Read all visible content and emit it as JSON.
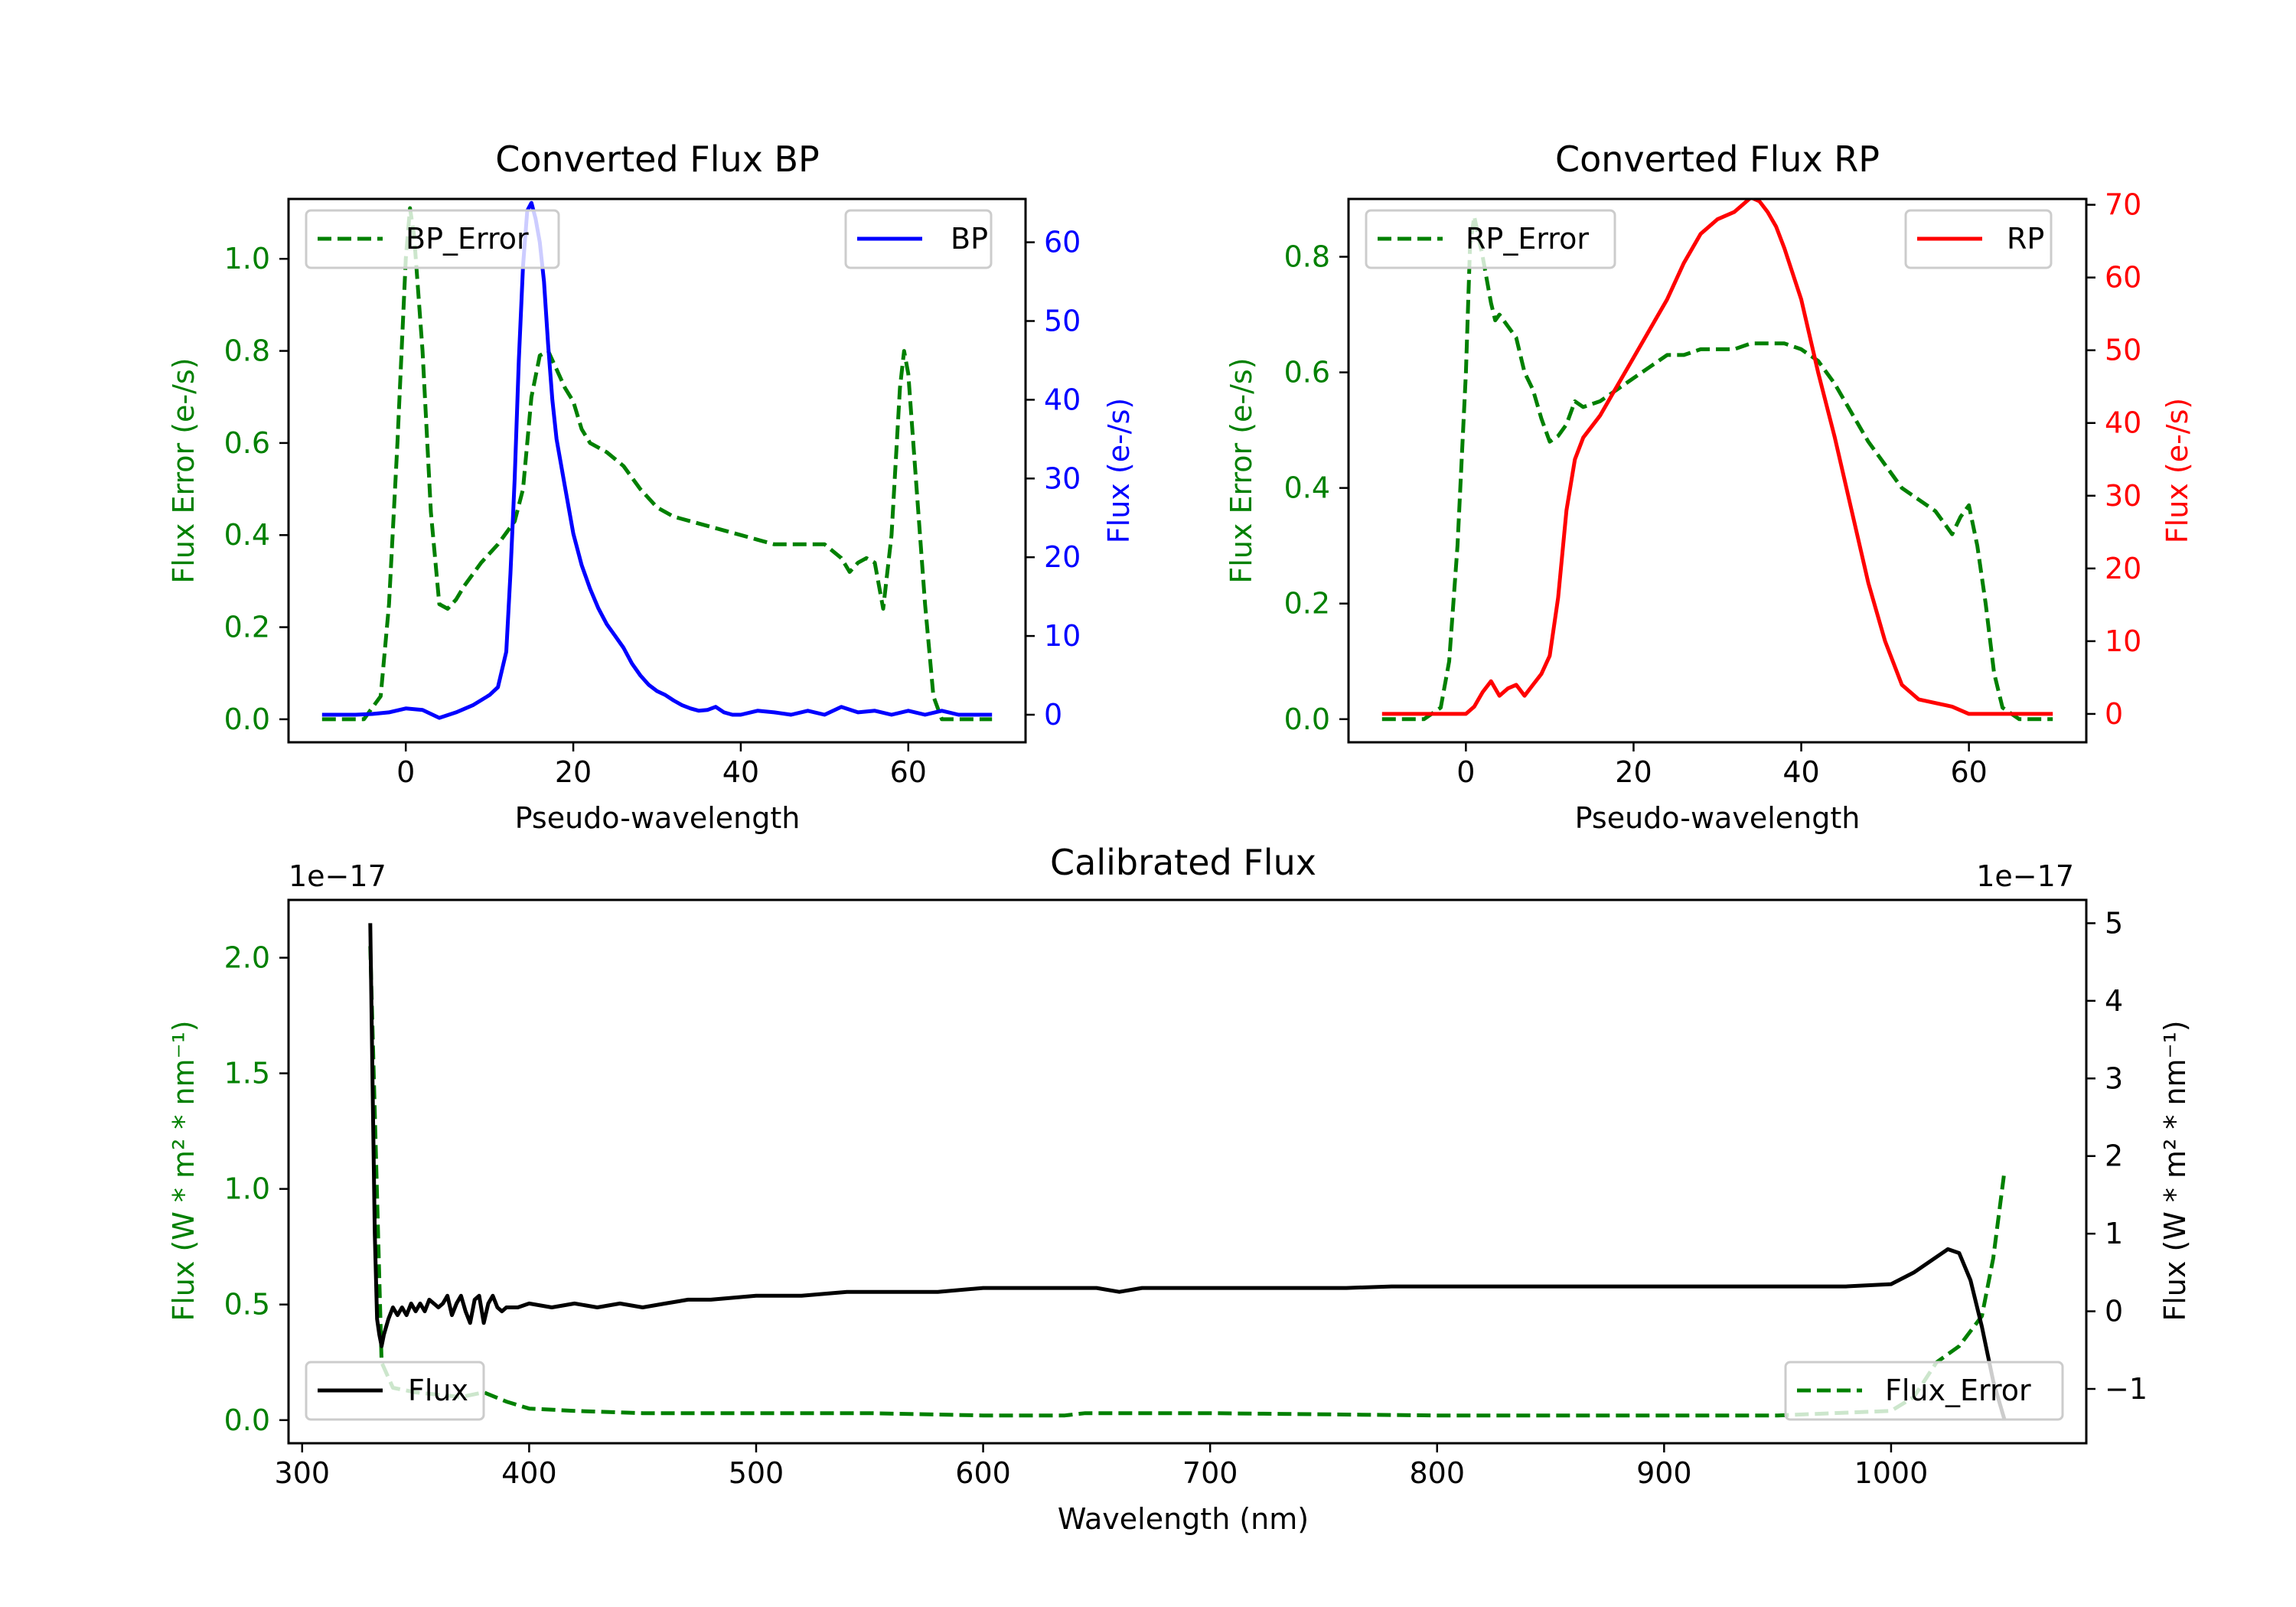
{
  "colors": {
    "green": "#008000",
    "blue": "#0000ff",
    "red": "#ff0000",
    "black": "#000000"
  },
  "chart_data": [
    {
      "type": "line",
      "title": "Converted Flux BP",
      "xlabel": "Pseudo-wavelength",
      "ylabel_left": "Flux Error (e-/s)",
      "ylabel_right": "Flux (e-/s)",
      "xlim": [
        -14,
        74
      ],
      "ylim_left": [
        -0.05,
        1.13
      ],
      "ylim_right": [
        -3.5,
        65.5
      ],
      "xticks": [
        0,
        20,
        40,
        60
      ],
      "yticks_left": [
        "0.0",
        "0.2",
        "0.4",
        "0.6",
        "0.8",
        "1.0"
      ],
      "yticks_right": [
        "0",
        "10",
        "20",
        "30",
        "40",
        "50",
        "60"
      ],
      "legend_left": "BP_Error",
      "legend_right": "BP",
      "series": [
        {
          "name": "BP_Error",
          "axis": "left",
          "style": "dashed",
          "color": "#008000",
          "x": [
            -10,
            -5,
            -3,
            -2,
            -1,
            0,
            0.5,
            1,
            2,
            3,
            4,
            5,
            6,
            7,
            9,
            11,
            13,
            14,
            15,
            16,
            17,
            18,
            19,
            20,
            21,
            22,
            24,
            26,
            28,
            30,
            32,
            34,
            36,
            38,
            40,
            42,
            44,
            46,
            48,
            50,
            52,
            53,
            54,
            55,
            56,
            57,
            58,
            59,
            59.5,
            60,
            61,
            62,
            63,
            64,
            66,
            70
          ],
          "y": [
            0,
            0,
            0.05,
            0.25,
            0.6,
            1.0,
            1.11,
            1.05,
            0.8,
            0.45,
            0.25,
            0.24,
            0.26,
            0.29,
            0.34,
            0.38,
            0.43,
            0.5,
            0.7,
            0.79,
            0.8,
            0.76,
            0.72,
            0.69,
            0.63,
            0.6,
            0.58,
            0.55,
            0.5,
            0.46,
            0.44,
            0.43,
            0.42,
            0.41,
            0.4,
            0.39,
            0.38,
            0.38,
            0.38,
            0.38,
            0.35,
            0.32,
            0.34,
            0.35,
            0.34,
            0.24,
            0.4,
            0.72,
            0.8,
            0.75,
            0.5,
            0.25,
            0.05,
            0,
            0,
            0
          ]
        },
        {
          "name": "BP",
          "axis": "right",
          "style": "solid",
          "color": "#0000ff",
          "x": [
            -10,
            -6,
            -4,
            -2,
            0,
            2,
            4,
            6,
            8,
            10,
            11,
            12,
            12.5,
            13,
            13.5,
            14,
            14.5,
            15,
            15.5,
            16,
            16.5,
            17,
            17.5,
            18,
            19,
            20,
            21,
            22,
            23,
            24,
            25,
            26,
            27,
            28,
            29,
            30,
            31,
            32,
            33,
            34,
            35,
            36,
            37,
            38,
            39,
            40,
            42,
            44,
            46,
            48,
            50,
            52,
            54,
            56,
            58,
            60,
            62,
            64,
            66,
            70
          ],
          "y": [
            0,
            0,
            0.1,
            0.3,
            0.8,
            0.6,
            -0.4,
            0.3,
            1.2,
            2.5,
            3.5,
            8,
            18,
            30,
            45,
            57,
            64,
            65,
            63,
            60,
            55,
            47,
            40,
            35,
            29,
            23,
            19,
            16,
            13.5,
            11.5,
            10,
            8.5,
            6.5,
            5,
            3.8,
            3,
            2.5,
            1.8,
            1.2,
            0.8,
            0.5,
            0.6,
            1,
            0.3,
            0,
            0,
            0.5,
            0.3,
            0,
            0.5,
            0,
            1,
            0.3,
            0.5,
            0,
            0.5,
            0,
            0.5,
            0,
            0
          ]
        }
      ]
    },
    {
      "type": "line",
      "title": "Converted Flux RP",
      "xlabel": "Pseudo-wavelength",
      "ylabel_left": "Flux Error (e-/s)",
      "ylabel_right": "Flux (e-/s)",
      "xlim": [
        -14,
        74
      ],
      "ylim_left": [
        -0.04,
        0.9
      ],
      "ylim_right": [
        -3.9,
        70.8
      ],
      "xticks": [
        0,
        20,
        40,
        60
      ],
      "yticks_left": [
        "0.0",
        "0.2",
        "0.4",
        "0.6",
        "0.8"
      ],
      "yticks_right": [
        "0",
        "10",
        "20",
        "30",
        "40",
        "50",
        "60",
        "70"
      ],
      "legend_left": "RP_Error",
      "legend_right": "RP",
      "series": [
        {
          "name": "RP_Error",
          "axis": "left",
          "style": "dashed",
          "color": "#008000",
          "x": [
            -10,
            -5,
            -3,
            -2,
            -1,
            0,
            0.5,
            1,
            2,
            3,
            3.5,
            4,
            5,
            6,
            7,
            8,
            9,
            10,
            11,
            12,
            13,
            14,
            16,
            18,
            20,
            22,
            24,
            26,
            28,
            30,
            32,
            34,
            36,
            38,
            40,
            42,
            44,
            46,
            48,
            50,
            52,
            54,
            56,
            57,
            58,
            59,
            60,
            61,
            62,
            63,
            64,
            66,
            70
          ],
          "y": [
            0,
            0,
            0.02,
            0.1,
            0.3,
            0.6,
            0.82,
            0.87,
            0.8,
            0.72,
            0.69,
            0.7,
            0.68,
            0.66,
            0.6,
            0.57,
            0.52,
            0.48,
            0.49,
            0.51,
            0.55,
            0.54,
            0.55,
            0.57,
            0.59,
            0.61,
            0.63,
            0.63,
            0.64,
            0.64,
            0.64,
            0.65,
            0.65,
            0.65,
            0.64,
            0.62,
            0.58,
            0.53,
            0.48,
            0.44,
            0.4,
            0.38,
            0.36,
            0.34,
            0.32,
            0.35,
            0.37,
            0.3,
            0.2,
            0.08,
            0.02,
            0,
            0
          ]
        },
        {
          "name": "RP",
          "axis": "right",
          "style": "solid",
          "color": "#ff0000",
          "x": [
            -10,
            -4,
            0,
            1,
            2,
            3,
            4,
            5,
            6,
            7,
            8,
            9,
            10,
            11,
            12,
            13,
            14,
            16,
            18,
            20,
            22,
            24,
            26,
            28,
            30,
            32,
            33,
            34,
            35,
            36,
            37,
            38,
            40,
            42,
            44,
            46,
            48,
            50,
            52,
            54,
            56,
            58,
            60,
            62,
            66,
            70
          ],
          "y": [
            0,
            0,
            0,
            1,
            3,
            4.5,
            2.5,
            3.5,
            4,
            2.5,
            4,
            5.5,
            8,
            16,
            28,
            35,
            38,
            41,
            45,
            49,
            53,
            57,
            62,
            66,
            68,
            69,
            70,
            71,
            70.5,
            69,
            67,
            64,
            57,
            47,
            38,
            28,
            18,
            10,
            4,
            2,
            1.5,
            1,
            0,
            0,
            0,
            0
          ]
        }
      ]
    },
    {
      "type": "line",
      "title": "Calibrated Flux",
      "xlabel": "Wavelength (nm)",
      "ylabel_left": "Flux (W * m² * nm⁻¹)",
      "ylabel_right": "Flux (W * m² * nm⁻¹)",
      "offset_left": "1e−17",
      "offset_right": "1e−17",
      "xlim": [
        294,
        1086
      ],
      "ylim_left": [
        -0.1,
        2.25
      ],
      "ylim_right": [
        -1.7,
        5.3
      ],
      "xticks": [
        300,
        400,
        500,
        600,
        700,
        800,
        900,
        1000
      ],
      "yticks_left": [
        "0.0",
        "0.5",
        "1.0",
        "1.5",
        "2.0"
      ],
      "yticks_right": [
        "−1",
        "0",
        "1",
        "2",
        "3",
        "4",
        "5"
      ],
      "legend_left": "Flux",
      "legend_right": "Flux_Error",
      "series": [
        {
          "name": "Flux_Error",
          "axis": "left",
          "style": "dashed",
          "color": "#008000",
          "x": [
            330,
            335,
            340,
            350,
            360,
            370,
            380,
            390,
            400,
            420,
            450,
            500,
            550,
            600,
            636,
            645,
            700,
            800,
            900,
            950,
            1000,
            1010,
            1020,
            1030,
            1040,
            1045,
            1050
          ],
          "y": [
            2.05,
            0.25,
            0.14,
            0.12,
            0.11,
            0.1,
            0.12,
            0.08,
            0.05,
            0.04,
            0.03,
            0.03,
            0.03,
            0.02,
            0.02,
            0.03,
            0.03,
            0.02,
            0.02,
            0.02,
            0.04,
            0.1,
            0.25,
            0.32,
            0.45,
            0.7,
            1.08
          ]
        },
        {
          "name": "Flux",
          "axis": "right",
          "style": "solid",
          "color": "#000000",
          "x": [
            330,
            331,
            332,
            333,
            334,
            335,
            336,
            338,
            340,
            342,
            344,
            346,
            348,
            350,
            352,
            354,
            356,
            358,
            360,
            362,
            364,
            366,
            368,
            370,
            372,
            374,
            376,
            378,
            380,
            382,
            384,
            386,
            388,
            390,
            395,
            400,
            410,
            420,
            430,
            440,
            450,
            460,
            470,
            480,
            500,
            520,
            540,
            560,
            580,
            600,
            620,
            640,
            650,
            660,
            670,
            680,
            690,
            700,
            710,
            720,
            730,
            740,
            760,
            780,
            800,
            820,
            840,
            860,
            880,
            900,
            920,
            940,
            960,
            980,
            1000,
            1010,
            1020,
            1025,
            1030,
            1035,
            1040,
            1045,
            1050
          ],
          "y": [
            5.0,
            3.0,
            1.0,
            -0.1,
            -0.3,
            -0.45,
            -0.3,
            -0.1,
            0.05,
            -0.05,
            0.05,
            -0.05,
            0.1,
            0.0,
            0.1,
            0.0,
            0.15,
            0.1,
            0.05,
            0.1,
            0.2,
            -0.05,
            0.1,
            0.2,
            0.0,
            -0.15,
            0.15,
            0.2,
            -0.15,
            0.1,
            0.2,
            0.05,
            0.0,
            0.05,
            0.05,
            0.1,
            0.05,
            0.1,
            0.05,
            0.1,
            0.05,
            0.1,
            0.15,
            0.15,
            0.2,
            0.2,
            0.25,
            0.25,
            0.25,
            0.3,
            0.3,
            0.3,
            0.3,
            0.25,
            0.3,
            0.3,
            0.3,
            0.3,
            0.3,
            0.3,
            0.3,
            0.3,
            0.3,
            0.32,
            0.32,
            0.32,
            0.32,
            0.32,
            0.32,
            0.32,
            0.32,
            0.32,
            0.32,
            0.32,
            0.35,
            0.5,
            0.7,
            0.8,
            0.75,
            0.4,
            -0.2,
            -0.9,
            -1.4
          ]
        }
      ]
    }
  ]
}
